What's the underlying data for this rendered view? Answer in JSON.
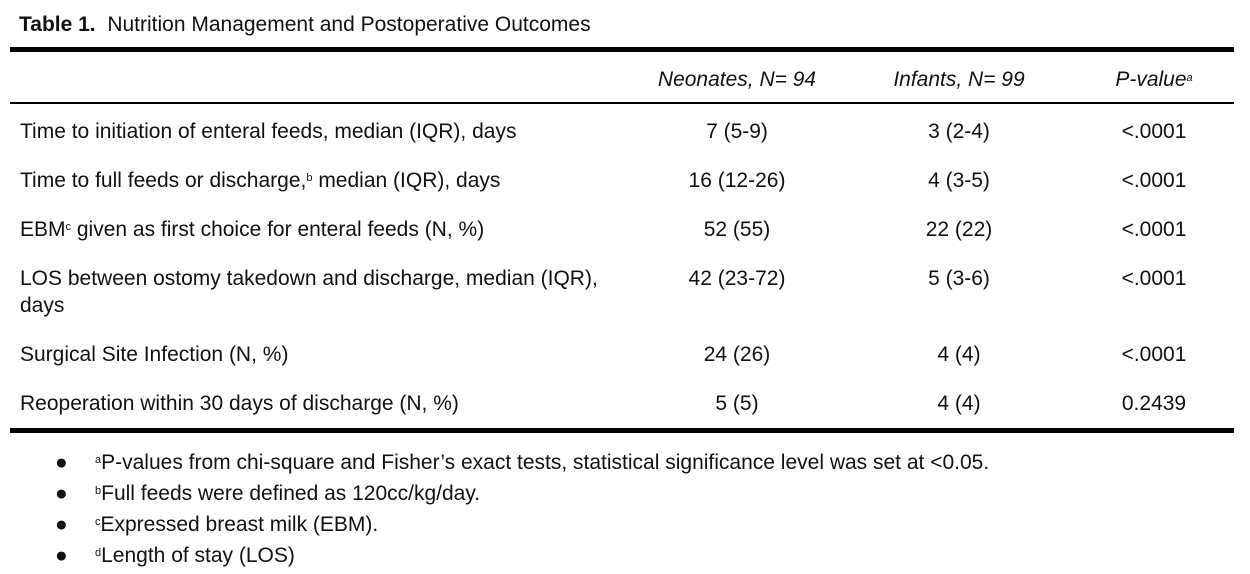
{
  "caption": {
    "label": "Table 1.",
    "title": "Nutrition Management and Postoperative Outcomes"
  },
  "columns": {
    "neonates": "Neonates, N= 94",
    "infants": "Infants, N= 99",
    "pvalue": "P-value",
    "pvalue_sup": "a"
  },
  "rows": [
    {
      "pre": "Time to initiation of enteral feeds, median (IQR), days",
      "sup": "",
      "post": "",
      "neonates": "7 (5-9)",
      "infants": "3 (2-4)",
      "p": "<.0001"
    },
    {
      "pre": "Time to full feeds or discharge,",
      "sup": "b",
      "post": " median (IQR), days",
      "neonates": "16 (12-26)",
      "infants": "4 (3-5)",
      "p": "<.0001"
    },
    {
      "pre": "EBM",
      "sup": "c",
      "post": " given as first choice for enteral feeds (N, %)",
      "neonates": "52 (55)",
      "infants": "22 (22)",
      "p": "<.0001"
    },
    {
      "pre": "LOS between ostomy takedown and discharge, median (IQR), days",
      "sup": "",
      "post": "",
      "neonates": "42 (23-72)",
      "infants": "5 (3-6)",
      "p": "<.0001"
    },
    {
      "pre": "Surgical Site Infection (N, %)",
      "sup": "",
      "post": "",
      "neonates": "24 (26)",
      "infants": "4 (4)",
      "p": "<.0001"
    },
    {
      "pre": "Reoperation within 30 days of discharge (N, %)",
      "sup": "",
      "post": "",
      "neonates": "5 (5)",
      "infants": "4 (4)",
      "p": "0.2439"
    }
  ],
  "footnotes": [
    {
      "sup": "a",
      "text": "P-values from chi-square and Fisher’s exact tests, statistical significance level was set at <0.05."
    },
    {
      "sup": "b",
      "text": "Full feeds were defined as 120cc/kg/day."
    },
    {
      "sup": "c",
      "text": "Expressed breast milk (EBM)."
    },
    {
      "sup": "d",
      "text": "Length of stay (LOS)"
    }
  ],
  "bullet_glyph": "●"
}
